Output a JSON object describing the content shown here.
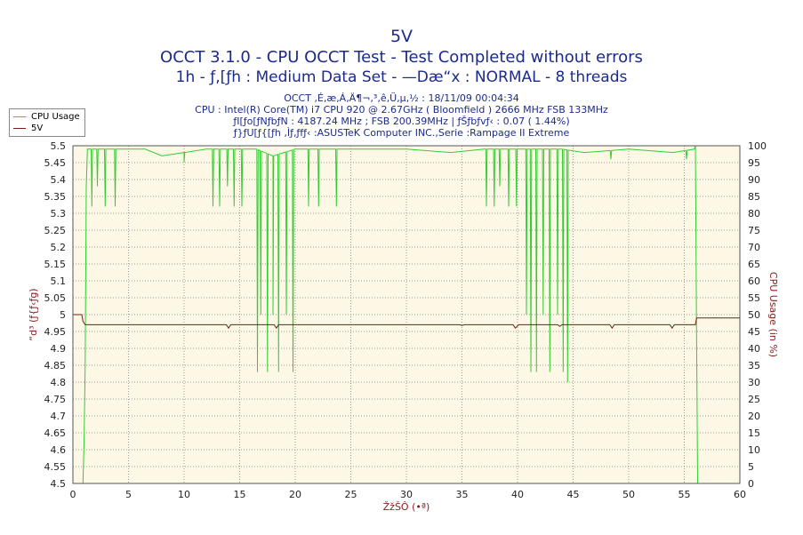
{
  "chart_data": {
    "type": "line",
    "title": "5V",
    "subtitle_1": "OCCT 3.1.0 - CPU OCCT Test - Test Completed without errors",
    "subtitle_2": "1h - ƒ‚[ƒh : Medium Data Set - —Dæ“x : NORMAL - 8 threads",
    "info_lines": [
      "OCCT ‚É‚æ‚Á‚Ä¶¬‚³‚ê‚Ü‚µ‚½ : 18/11/09 00:04:34",
      "CPU : Intel(R) Core(TM) i7 CPU 920 @ 2.67GHz ( Bloomfield ) 2666 MHz FSB 133MHz",
      "ƒI[ƒo[ƒNƒbƒN : 4187.24 MHz ; FSB 200.39MHz | ƒŠƒbƒvƒ‹ : 0.07 ( 1.44%)",
      "ƒ}ƒU[ƒ{[ƒh ‚Ìƒ‚ƒfƒ‹ :ASUSTeK Computer INC.,Serie :Rampage II Extreme"
    ],
    "xlabel": "ŽžŠÔ (•ª)",
    "ylabel_left": "“d³ (ƒ{ƒ‹ƒg)",
    "ylabel_right": "CPU Usage (in %)",
    "xlim": [
      0,
      60
    ],
    "ylim_left": [
      4.5,
      5.5
    ],
    "ylim_right": [
      0,
      100
    ],
    "x_ticks": [
      "0",
      "5",
      "10",
      "15",
      "20",
      "25",
      "30",
      "35",
      "40",
      "45",
      "50",
      "55",
      "60"
    ],
    "y_ticks_left": [
      "4.5",
      "4.55",
      "4.6",
      "4.65",
      "4.7",
      "4.75",
      "4.8",
      "4.85",
      "4.9",
      "4.95",
      "5",
      "5.05",
      "5.1",
      "5.15",
      "5.2",
      "5.25",
      "5.3",
      "5.35",
      "5.4",
      "5.45",
      "5.5"
    ],
    "y_ticks_right": [
      "0",
      "5",
      "10",
      "15",
      "20",
      "25",
      "30",
      "35",
      "40",
      "45",
      "50",
      "55",
      "60",
      "65",
      "70",
      "75",
      "80",
      "85",
      "90",
      "95",
      "100"
    ],
    "grid": true,
    "legend_placement": "top-left",
    "series": [
      {
        "name": "CPU Usage",
        "axis": "right",
        "color": "#33cc33",
        "points": [
          [
            0.9,
            0
          ],
          [
            1.0,
            12
          ],
          [
            1.1,
            35
          ],
          [
            1.2,
            88
          ],
          [
            1.3,
            99
          ],
          [
            6.5,
            99
          ],
          [
            8,
            97
          ],
          [
            10,
            98
          ],
          [
            12,
            99
          ],
          [
            16.5,
            99
          ],
          [
            18,
            97
          ],
          [
            20,
            99
          ],
          [
            30,
            99
          ],
          [
            34,
            98
          ],
          [
            37,
            99
          ],
          [
            44,
            99
          ],
          [
            46,
            98
          ],
          [
            50,
            99
          ],
          [
            54,
            98
          ],
          [
            55.9,
            99
          ],
          [
            56.0,
            100
          ],
          [
            56.1,
            45
          ],
          [
            56.2,
            0
          ]
        ],
        "dips": [
          [
            1.7,
            82
          ],
          [
            2.2,
            88
          ],
          [
            2.9,
            82
          ],
          [
            3.8,
            82
          ],
          [
            10.0,
            95
          ],
          [
            12.6,
            82
          ],
          [
            13.2,
            82
          ],
          [
            13.9,
            88
          ],
          [
            14.5,
            82
          ],
          [
            15.2,
            82
          ],
          [
            16.6,
            33
          ],
          [
            16.9,
            50
          ],
          [
            17.5,
            33
          ],
          [
            18.0,
            50
          ],
          [
            18.5,
            33
          ],
          [
            19.2,
            50
          ],
          [
            19.8,
            33
          ],
          [
            21.2,
            82
          ],
          [
            22.1,
            82
          ],
          [
            23.7,
            82
          ],
          [
            37.2,
            82
          ],
          [
            37.9,
            82
          ],
          [
            38.4,
            88
          ],
          [
            39.2,
            82
          ],
          [
            39.9,
            82
          ],
          [
            40.8,
            50
          ],
          [
            41.2,
            33
          ],
          [
            41.7,
            33
          ],
          [
            42.3,
            50
          ],
          [
            42.9,
            33
          ],
          [
            43.6,
            50
          ],
          [
            44.1,
            33
          ],
          [
            44.5,
            30
          ],
          [
            48.4,
            96
          ],
          [
            55.2,
            96
          ]
        ]
      },
      {
        "name": "5V",
        "axis": "left",
        "color": "#7a1a1a",
        "points": [
          [
            0,
            5.0
          ],
          [
            0.8,
            5.0
          ],
          [
            0.9,
            4.98
          ],
          [
            1.1,
            4.97
          ],
          [
            13.8,
            4.97
          ],
          [
            14.0,
            4.96
          ],
          [
            14.2,
            4.97
          ],
          [
            18.1,
            4.97
          ],
          [
            18.3,
            4.96
          ],
          [
            18.5,
            4.97
          ],
          [
            34.8,
            4.97
          ],
          [
            35.0,
            4.968
          ],
          [
            35.2,
            4.97
          ],
          [
            39.6,
            4.97
          ],
          [
            39.8,
            4.96
          ],
          [
            40.1,
            4.97
          ],
          [
            43.6,
            4.97
          ],
          [
            43.8,
            4.965
          ],
          [
            44.0,
            4.97
          ],
          [
            48.3,
            4.97
          ],
          [
            48.5,
            4.96
          ],
          [
            48.7,
            4.97
          ],
          [
            53.7,
            4.97
          ],
          [
            53.9,
            4.96
          ],
          [
            54.1,
            4.97
          ],
          [
            56.0,
            4.97
          ],
          [
            56.1,
            4.99
          ],
          [
            60,
            4.99
          ]
        ]
      }
    ]
  }
}
